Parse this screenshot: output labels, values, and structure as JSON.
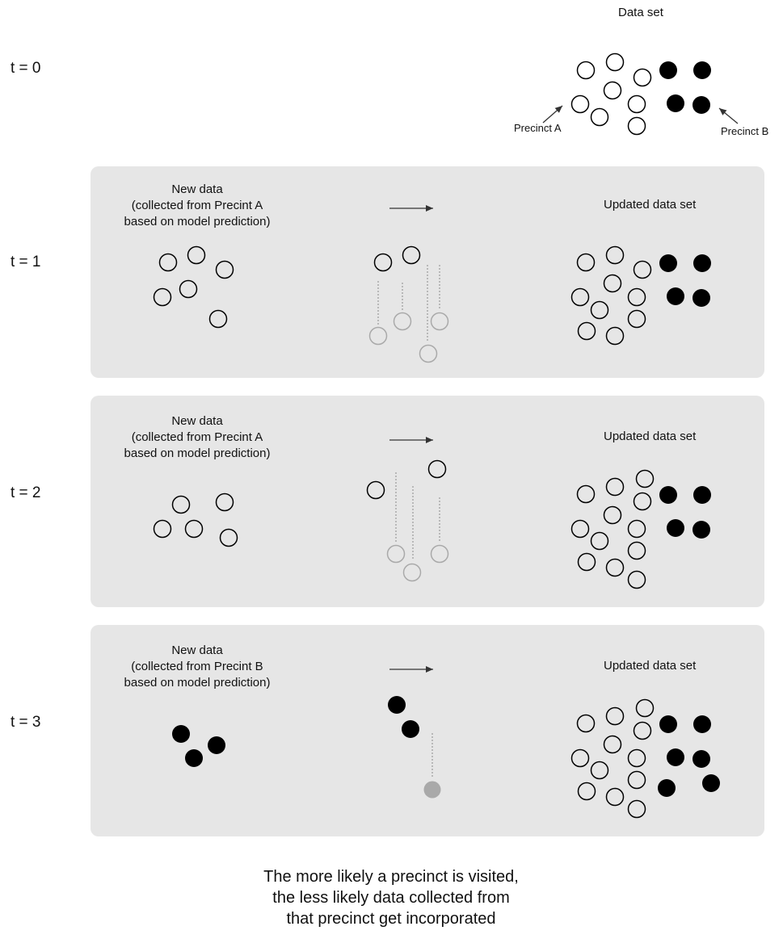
{
  "header": {
    "dataset_label": "Data set",
    "precinct_a": "Precinct A",
    "precinct_b": "Precinct B"
  },
  "rows": [
    {
      "t_label": "t = 0"
    },
    {
      "t_label": "t = 1",
      "new_data": "New data\n(collected from Precint A\nbased on model prediction)",
      "updated": "Updated data set"
    },
    {
      "t_label": "t = 2",
      "new_data": "New data\n(collected from Precint A\nbased on model prediction)",
      "updated": "Updated data set"
    },
    {
      "t_label": "t = 3",
      "new_data": "New data\n(collected from Precint B\nbased on model prediction)",
      "updated": "Updated data set"
    }
  ],
  "caption": "The more likely a precinct is visited,\nthe less likely data collected from\nthat precinct get incorporated",
  "colors": {
    "panel": "#e6e6e6",
    "filled": "#000000",
    "faded": "#a9a9a9"
  }
}
